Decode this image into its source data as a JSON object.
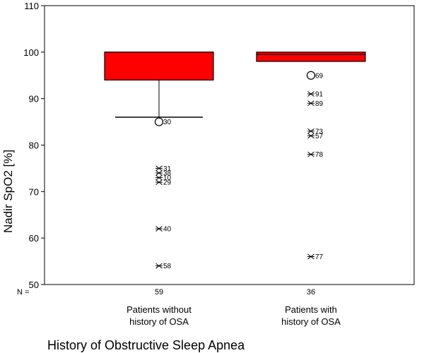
{
  "chart_data": {
    "type": "boxplot",
    "ylabel": "Nadir SpO2 [%]",
    "xlabel": "History of Obstructive Sleep Apnea",
    "ylim": [
      50,
      110
    ],
    "yticks": [
      50,
      60,
      70,
      80,
      90,
      100,
      110
    ],
    "n_prefix": "N =",
    "box_color": "#ff0000",
    "categories": [
      {
        "label_lines": [
          "Patients without",
          "history of OSA"
        ],
        "n": "59",
        "q1": 94,
        "median": 100,
        "q3": 100,
        "whisker_low": 86,
        "whisker_high": 100,
        "outliers": [
          {
            "value": 85,
            "label": "30",
            "marker": "circle"
          }
        ],
        "extremes": [
          {
            "value": 75,
            "label": "31"
          },
          {
            "value": 74,
            "label": "38"
          },
          {
            "value": 73,
            "label": "10"
          },
          {
            "value": 72,
            "label": "29"
          },
          {
            "value": 62,
            "label": "40"
          },
          {
            "value": 54,
            "label": "58"
          }
        ]
      },
      {
        "label_lines": [
          "Patients with",
          "history of OSA"
        ],
        "n": "36",
        "q1": 98,
        "median": 99.5,
        "q3": 100,
        "whisker_low": 98,
        "whisker_high": 100,
        "outliers": [
          {
            "value": 95,
            "label": "69",
            "marker": "circle"
          }
        ],
        "extremes": [
          {
            "value": 91,
            "label": "91"
          },
          {
            "value": 89,
            "label": "89"
          },
          {
            "value": 83,
            "label": "73"
          },
          {
            "value": 82,
            "label": "57"
          },
          {
            "value": 78,
            "label": "78"
          },
          {
            "value": 56,
            "label": "77"
          }
        ]
      }
    ]
  }
}
